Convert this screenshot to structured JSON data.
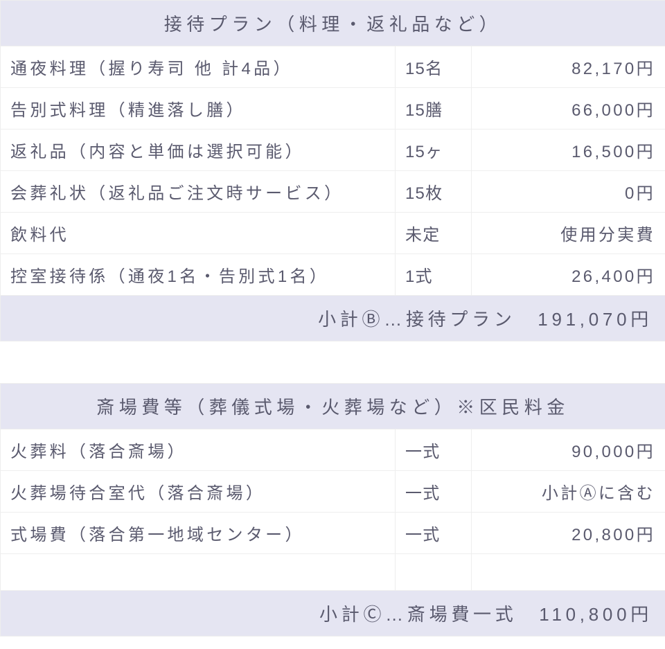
{
  "colors": {
    "header_bg": "#e5e5f2",
    "border": "#eeeeee",
    "text": "#5a5a6e",
    "page_bg": "#ffffff"
  },
  "table1": {
    "header": "接待プラン（料理・返礼品など）",
    "rows": [
      {
        "name": "通夜料理（握り寿司 他 計4品）",
        "qty": "15名",
        "price": "82,170円"
      },
      {
        "name": "告別式料理（精進落し膳）",
        "qty": "15膳",
        "price": "66,000円"
      },
      {
        "name": "返礼品（内容と単価は選択可能）",
        "qty": "15ヶ",
        "price": "16,500円"
      },
      {
        "name": "会葬礼状（返礼品ご注文時サービス）",
        "qty": "15枚",
        "price": "0円",
        "tight": true
      },
      {
        "name": "飲料代",
        "qty": "未定",
        "price": "使用分実費"
      },
      {
        "name": "控室接待係（通夜1名・告別式1名）",
        "qty": "1式",
        "price": "26,400円",
        "tight": true
      }
    ],
    "subtotal": "小計Ⓑ…接待プラン　191,070円"
  },
  "table2": {
    "header": "斎場費等（葬儀式場・火葬場など）※区民料金",
    "rows": [
      {
        "name": "火葬料（落合斎場）",
        "qty": "一式",
        "price": "90,000円"
      },
      {
        "name": "火葬場待合室代（落合斎場）",
        "qty": "一式",
        "price": "小計Ⓐに含む",
        "price_tight": true
      },
      {
        "name": "式場費（落合第一地域センター）",
        "qty": "一式",
        "price": "20,800円"
      },
      {
        "name": "",
        "qty": "",
        "price": ""
      }
    ],
    "subtotal": "小計Ⓒ…斎場費一式　110,800円"
  }
}
